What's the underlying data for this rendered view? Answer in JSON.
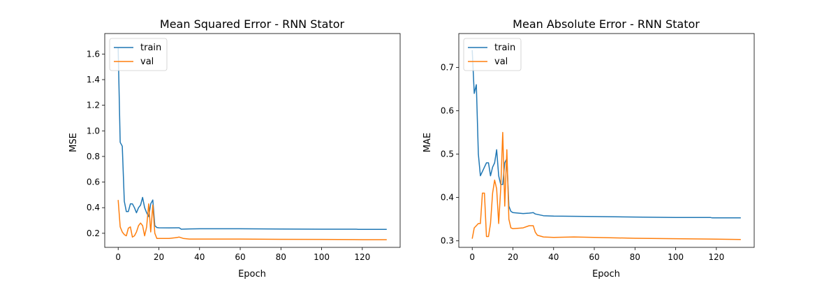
{
  "colors": {
    "train": "#1f77b4",
    "val": "#ff7f0e"
  },
  "chart_data": [
    {
      "type": "line",
      "title": "Mean Squared Error - RNN Stator",
      "xlabel": "Epoch",
      "ylabel": "MSE",
      "xlim": [
        -6.6,
        138.6
      ],
      "ylim": [
        0.09,
        1.76
      ],
      "xticks": [
        0,
        20,
        40,
        60,
        80,
        100,
        120
      ],
      "yticks": [
        0.2,
        0.4,
        0.6,
        0.8,
        1.0,
        1.2,
        1.4,
        1.6
      ],
      "ytick_labels": [
        "0.2",
        "0.4",
        "0.6",
        "0.8",
        "1.0",
        "1.2",
        "1.4",
        "1.6"
      ],
      "legend": {
        "position": "top-left",
        "entries": [
          "train",
          "val"
        ]
      },
      "grid": false,
      "series": [
        {
          "name": "train",
          "x": [
            0,
            1,
            2,
            3,
            4,
            5,
            6,
            7,
            8,
            9,
            10,
            11,
            12,
            13,
            14,
            15,
            16,
            17,
            18,
            19,
            20,
            25,
            30,
            31,
            35,
            40,
            60,
            80,
            100,
            117,
            118,
            132
          ],
          "y": [
            1.65,
            0.91,
            0.88,
            0.45,
            0.37,
            0.37,
            0.43,
            0.43,
            0.4,
            0.36,
            0.4,
            0.42,
            0.48,
            0.4,
            0.36,
            0.33,
            0.43,
            0.46,
            0.26,
            0.245,
            0.243,
            0.242,
            0.243,
            0.232,
            0.234,
            0.235,
            0.235,
            0.233,
            0.232,
            0.232,
            0.23,
            0.23
          ]
        },
        {
          "name": "val",
          "x": [
            0,
            1,
            2,
            3,
            4,
            5,
            6,
            7,
            8,
            9,
            10,
            11,
            12,
            13,
            14,
            15,
            16,
            17,
            18,
            19,
            20,
            25,
            28,
            30,
            32,
            35,
            40,
            60,
            80,
            100,
            120,
            132
          ],
          "y": [
            0.46,
            0.25,
            0.21,
            0.19,
            0.18,
            0.24,
            0.25,
            0.17,
            0.18,
            0.21,
            0.26,
            0.28,
            0.26,
            0.18,
            0.25,
            0.43,
            0.21,
            0.42,
            0.2,
            0.16,
            0.16,
            0.16,
            0.165,
            0.17,
            0.16,
            0.155,
            0.155,
            0.155,
            0.153,
            0.152,
            0.15,
            0.15
          ]
        }
      ]
    },
    {
      "type": "line",
      "title": "Mean Absolute Error - RNN Stator",
      "xlabel": "Epoch",
      "ylabel": "MAE",
      "xlim": [
        -6.6,
        138.6
      ],
      "ylim": [
        0.285,
        0.778
      ],
      "xticks": [
        0,
        20,
        40,
        60,
        80,
        100,
        120
      ],
      "yticks": [
        0.3,
        0.4,
        0.5,
        0.6,
        0.7
      ],
      "ytick_labels": [
        "0.3",
        "0.4",
        "0.5",
        "0.6",
        "0.7"
      ],
      "legend": {
        "position": "top-left",
        "entries": [
          "train",
          "val"
        ]
      },
      "grid": false,
      "series": [
        {
          "name": "train",
          "x": [
            0,
            1,
            2,
            3,
            4,
            5,
            6,
            7,
            8,
            9,
            10,
            11,
            12,
            13,
            14,
            15,
            16,
            17,
            18,
            19,
            20,
            25,
            28,
            30,
            31,
            35,
            40,
            60,
            80,
            100,
            117,
            118,
            132
          ],
          "y": [
            0.74,
            0.64,
            0.66,
            0.5,
            0.45,
            0.46,
            0.47,
            0.48,
            0.48,
            0.45,
            0.47,
            0.48,
            0.51,
            0.45,
            0.43,
            0.43,
            0.48,
            0.49,
            0.38,
            0.368,
            0.365,
            0.363,
            0.364,
            0.365,
            0.362,
            0.358,
            0.357,
            0.356,
            0.355,
            0.354,
            0.354,
            0.353,
            0.353
          ]
        },
        {
          "name": "val",
          "x": [
            0,
            1,
            2,
            3,
            4,
            5,
            6,
            7,
            8,
            9,
            10,
            11,
            12,
            13,
            14,
            15,
            16,
            17,
            18,
            19,
            20,
            25,
            28,
            30,
            31,
            32,
            35,
            40,
            50,
            60,
            80,
            100,
            120,
            132
          ],
          "y": [
            0.305,
            0.33,
            0.335,
            0.34,
            0.34,
            0.41,
            0.41,
            0.31,
            0.31,
            0.34,
            0.41,
            0.44,
            0.42,
            0.34,
            0.42,
            0.55,
            0.38,
            0.51,
            0.35,
            0.33,
            0.328,
            0.33,
            0.335,
            0.335,
            0.32,
            0.313,
            0.309,
            0.308,
            0.309,
            0.308,
            0.306,
            0.305,
            0.304,
            0.303
          ]
        }
      ]
    }
  ]
}
